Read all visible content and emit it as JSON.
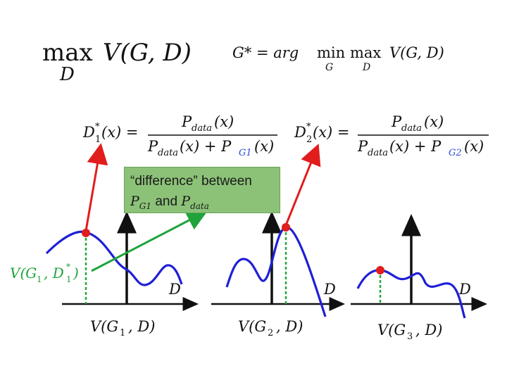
{
  "formulas": {
    "max_op": "max",
    "max_sub": "D",
    "objective": "V(G, D)",
    "g_star": "G* = arg",
    "g_min": "min",
    "g_min_sub": "G",
    "g_max": "max",
    "g_max_sub": "D",
    "g_obj": "V(G, D)",
    "d1_lhs": "D",
    "d1_lhs_sub": "1",
    "d1_lhs_sup": "*",
    "d1_lhs_arg": "(x) =",
    "d1_num": "P",
    "d1_num_sub": "data",
    "d1_num_arg": "(x)",
    "d1_den_a": "P",
    "d1_den_a_sub": "data",
    "d1_den_plus": "(x) + P",
    "d1_den_g": "G1",
    "d1_den_end": "(x)",
    "d2_lhs": "D",
    "d2_lhs_sub": "2",
    "d2_lhs_sup": "*",
    "d2_lhs_arg": "(x) =",
    "d2_num": "P",
    "d2_num_sub": "data",
    "d2_num_arg": "(x)",
    "d2_den_a": "P",
    "d2_den_a_sub": "data",
    "d2_den_plus": "(x) + P",
    "d2_den_g": "G2",
    "d2_den_end": "(x)"
  },
  "callout": {
    "line1": "“difference” between",
    "p_g1": "P",
    "p_g1_sub": "G1",
    "and": "and",
    "p_data": "P",
    "p_data_sub": "data"
  },
  "value_label": {
    "text": "V(G",
    "sub": "1",
    "mid": ", D",
    "mid_sub": "1",
    "mid_sup": "*",
    "end": ")"
  },
  "plots": [
    {
      "axis_label": "D",
      "caption": "V(G",
      "caption_sub": "1",
      "caption_end": ", D)"
    },
    {
      "axis_label": "D",
      "caption": "V(G",
      "caption_sub": "2",
      "caption_end": ", D)"
    },
    {
      "axis_label": "D",
      "caption": "V(G",
      "caption_sub": "3",
      "caption_end": ", D)"
    }
  ],
  "colors": {
    "curve": "#1f1fd6",
    "arrow_red": "#e11d1d",
    "arrow_green": "#1fa33a",
    "marker": "#e11d1d",
    "dashed": "#22a83a",
    "callout_bg": "#8cc278",
    "g_subscript": "#2b4bd6"
  }
}
